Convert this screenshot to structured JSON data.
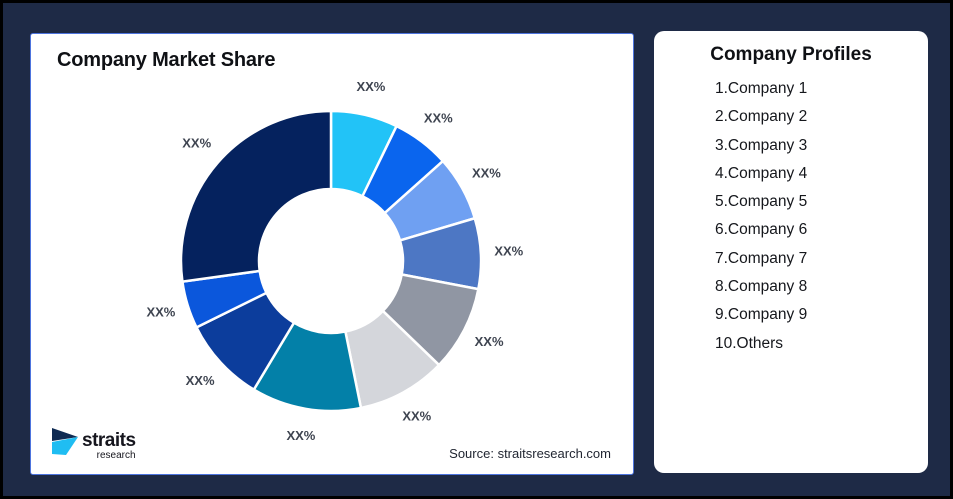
{
  "app": {
    "background_color": "#1E2A46",
    "frame_color": "#000000"
  },
  "chart_card": {
    "border_color": "#4D74DE",
    "source_note": "Source: straitsresearch.com",
    "logo": {
      "brand": "straits",
      "sub": "research",
      "icon_navy": "#0E2A52",
      "icon_cyan": "#1FBDF2"
    }
  },
  "chart_data": {
    "type": "donut",
    "title": "Company Market Share",
    "legend": "none",
    "inner_radius_ratio": 0.48,
    "label_color": "#3E4450",
    "segments": [
      {
        "category": "Company 1",
        "label": "XX%",
        "share_pct_est": 7.2,
        "color": "#22C3F7"
      },
      {
        "category": "Company 2",
        "label": "XX%",
        "share_pct_est": 6.2,
        "color": "#0A65EE"
      },
      {
        "category": "Company 3",
        "label": "XX%",
        "share_pct_est": 7.0,
        "color": "#6FA0F2"
      },
      {
        "category": "Company 4",
        "label": "XX%",
        "share_pct_est": 7.6,
        "color": "#4D77C4"
      },
      {
        "category": "Company 5",
        "label": "XX%",
        "share_pct_est": 9.2,
        "color": "#9096A3"
      },
      {
        "category": "Company 6",
        "label": "XX%",
        "share_pct_est": 9.6,
        "color": "#D4D6DB"
      },
      {
        "category": "Company 7",
        "label": "XX%",
        "share_pct_est": 11.8,
        "color": "#0380A8"
      },
      {
        "category": "Company 8",
        "label": "XX%",
        "share_pct_est": 9.1,
        "color": "#0C3D9C"
      },
      {
        "category": "Company 9",
        "label": "XX%",
        "share_pct_est": 5.1,
        "color": "#0B57DC"
      },
      {
        "category": "Others",
        "label": "XX%",
        "share_pct_est": 27.2,
        "color": "#05225E"
      }
    ]
  },
  "profiles": {
    "title": "Company Profiles",
    "items": [
      "1.Company 1",
      "2.Company 2",
      "3.Company 3",
      "4.Company 4",
      "5.Company 5",
      "6.Company 6",
      "7.Company 7",
      "8.Company 8",
      "9.Company 9",
      "10.Others"
    ]
  }
}
